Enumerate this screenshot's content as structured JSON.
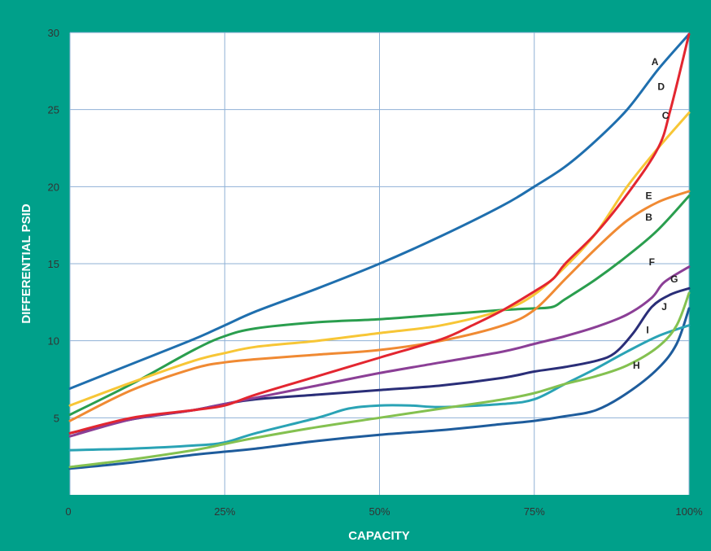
{
  "chart_data": {
    "type": "line",
    "title": "",
    "xlabel": "CAPACITY",
    "ylabel": "DIFFERENTIAL PSID",
    "xlim": [
      0,
      100
    ],
    "ylim": [
      0,
      30
    ],
    "x_ticks": [
      {
        "value": 0,
        "label": "0"
      },
      {
        "value": 25,
        "label": "25%"
      },
      {
        "value": 50,
        "label": "50%"
      },
      {
        "value": 75,
        "label": "75%"
      },
      {
        "value": 100,
        "label": "100%"
      }
    ],
    "y_ticks": [
      {
        "value": 5,
        "label": "5"
      },
      {
        "value": 10,
        "label": "10"
      },
      {
        "value": 15,
        "label": "15"
      },
      {
        "value": 20,
        "label": "20"
      },
      {
        "value": 25,
        "label": "25"
      },
      {
        "value": 30,
        "label": "30"
      }
    ],
    "grid": true,
    "legend": "inline labels near right end of curves",
    "colors": {
      "background": "#00a08a",
      "plot_background": "#ffffff",
      "grid": "#8fb1d6"
    },
    "series": [
      {
        "name": "A",
        "color": "#1f6fae",
        "label_at": [
          94.5,
          28.1
        ],
        "points": [
          [
            0,
            6.9
          ],
          [
            10,
            8.5
          ],
          [
            20,
            10.1
          ],
          [
            25,
            11.0
          ],
          [
            30,
            11.9
          ],
          [
            40,
            13.4
          ],
          [
            50,
            15.0
          ],
          [
            60,
            16.8
          ],
          [
            70,
            18.8
          ],
          [
            75,
            20.0
          ],
          [
            80,
            21.3
          ],
          [
            85,
            23.0
          ],
          [
            90,
            25.0
          ],
          [
            95,
            27.6
          ],
          [
            100,
            29.9
          ]
        ]
      },
      {
        "name": "D",
        "color": "#e32630",
        "label_at": [
          95.5,
          26.5
        ],
        "points": [
          [
            0,
            4.0
          ],
          [
            10,
            5.0
          ],
          [
            20,
            5.5
          ],
          [
            25,
            5.8
          ],
          [
            30,
            6.5
          ],
          [
            40,
            7.7
          ],
          [
            50,
            8.9
          ],
          [
            60,
            10.1
          ],
          [
            65,
            11.0
          ],
          [
            70,
            12.0
          ],
          [
            75,
            13.2
          ],
          [
            78,
            14.0
          ],
          [
            80,
            15.0
          ],
          [
            85,
            17.0
          ],
          [
            90,
            19.5
          ],
          [
            95,
            22.5
          ],
          [
            97,
            25.0
          ],
          [
            100,
            29.9
          ]
        ]
      },
      {
        "name": "C",
        "color": "#f7c636",
        "label_at": [
          96.2,
          24.6
        ],
        "points": [
          [
            0,
            5.8
          ],
          [
            10,
            7.3
          ],
          [
            20,
            8.7
          ],
          [
            25,
            9.2
          ],
          [
            30,
            9.6
          ],
          [
            40,
            10.0
          ],
          [
            50,
            10.5
          ],
          [
            60,
            11.0
          ],
          [
            70,
            12.0
          ],
          [
            75,
            13.0
          ],
          [
            80,
            14.8
          ],
          [
            85,
            17.0
          ],
          [
            90,
            20.0
          ],
          [
            95,
            22.5
          ],
          [
            100,
            24.8
          ]
        ]
      },
      {
        "name": "E",
        "color": "#f08a33",
        "label_at": [
          93.5,
          19.4
        ],
        "points": [
          [
            0,
            4.8
          ],
          [
            10,
            6.8
          ],
          [
            20,
            8.2
          ],
          [
            25,
            8.6
          ],
          [
            30,
            8.8
          ],
          [
            40,
            9.1
          ],
          [
            50,
            9.4
          ],
          [
            60,
            10.0
          ],
          [
            70,
            11.0
          ],
          [
            75,
            12.0
          ],
          [
            80,
            14.0
          ],
          [
            85,
            16.0
          ],
          [
            90,
            17.8
          ],
          [
            95,
            19.0
          ],
          [
            100,
            19.7
          ]
        ]
      },
      {
        "name": "B",
        "color": "#2a9e4e",
        "label_at": [
          93.5,
          18.0
        ],
        "points": [
          [
            0,
            5.2
          ],
          [
            10,
            7.2
          ],
          [
            20,
            9.4
          ],
          [
            25,
            10.3
          ],
          [
            30,
            10.8
          ],
          [
            40,
            11.2
          ],
          [
            50,
            11.4
          ],
          [
            60,
            11.7
          ],
          [
            70,
            12.0
          ],
          [
            75,
            12.1
          ],
          [
            78,
            12.2
          ],
          [
            80,
            12.7
          ],
          [
            85,
            14.0
          ],
          [
            90,
            15.5
          ],
          [
            95,
            17.2
          ],
          [
            100,
            19.4
          ]
        ]
      },
      {
        "name": "F",
        "color": "#8b3f96",
        "label_at": [
          94.0,
          15.1
        ],
        "points": [
          [
            0,
            3.8
          ],
          [
            10,
            4.9
          ],
          [
            20,
            5.5
          ],
          [
            25,
            5.9
          ],
          [
            30,
            6.3
          ],
          [
            40,
            7.1
          ],
          [
            50,
            7.9
          ],
          [
            60,
            8.6
          ],
          [
            70,
            9.3
          ],
          [
            75,
            9.8
          ],
          [
            80,
            10.3
          ],
          [
            85,
            10.9
          ],
          [
            90,
            11.7
          ],
          [
            94,
            12.8
          ],
          [
            96,
            13.8
          ],
          [
            100,
            14.8
          ]
        ]
      },
      {
        "name": "G",
        "color": "#2a2e78",
        "label_at": [
          97.6,
          14.0
        ],
        "points": [
          [
            0,
            4.0
          ],
          [
            10,
            4.9
          ],
          [
            20,
            5.5
          ],
          [
            25,
            5.9
          ],
          [
            30,
            6.2
          ],
          [
            40,
            6.5
          ],
          [
            50,
            6.8
          ],
          [
            60,
            7.1
          ],
          [
            70,
            7.6
          ],
          [
            75,
            8.0
          ],
          [
            80,
            8.3
          ],
          [
            85,
            8.7
          ],
          [
            88,
            9.2
          ],
          [
            91,
            10.5
          ],
          [
            94,
            12.2
          ],
          [
            97,
            13.0
          ],
          [
            100,
            13.4
          ]
        ]
      },
      {
        "name": "J",
        "color": "#84c150",
        "label_at": [
          96.0,
          12.2
        ],
        "points": [
          [
            0,
            1.8
          ],
          [
            10,
            2.3
          ],
          [
            20,
            2.9
          ],
          [
            25,
            3.3
          ],
          [
            30,
            3.7
          ],
          [
            40,
            4.4
          ],
          [
            50,
            5.0
          ],
          [
            60,
            5.6
          ],
          [
            70,
            6.2
          ],
          [
            75,
            6.6
          ],
          [
            80,
            7.2
          ],
          [
            85,
            7.7
          ],
          [
            90,
            8.4
          ],
          [
            95,
            9.6
          ],
          [
            98,
            11.0
          ],
          [
            100,
            13.1
          ]
        ]
      },
      {
        "name": "I",
        "color": "#2aa3b5",
        "label_at": [
          93.3,
          10.7
        ],
        "points": [
          [
            0,
            2.9
          ],
          [
            10,
            3.0
          ],
          [
            20,
            3.2
          ],
          [
            25,
            3.4
          ],
          [
            30,
            4.0
          ],
          [
            40,
            5.0
          ],
          [
            45,
            5.6
          ],
          [
            50,
            5.8
          ],
          [
            55,
            5.8
          ],
          [
            60,
            5.7
          ],
          [
            70,
            5.9
          ],
          [
            75,
            6.2
          ],
          [
            80,
            7.2
          ],
          [
            85,
            8.2
          ],
          [
            90,
            9.3
          ],
          [
            95,
            10.3
          ],
          [
            100,
            11.0
          ]
        ]
      },
      {
        "name": "H",
        "color": "#1e5c9c",
        "label_at": [
          91.5,
          8.4
        ],
        "points": [
          [
            0,
            1.7
          ],
          [
            10,
            2.1
          ],
          [
            20,
            2.6
          ],
          [
            25,
            2.8
          ],
          [
            30,
            3.0
          ],
          [
            40,
            3.5
          ],
          [
            50,
            3.9
          ],
          [
            60,
            4.2
          ],
          [
            70,
            4.6
          ],
          [
            75,
            4.8
          ],
          [
            80,
            5.1
          ],
          [
            85,
            5.5
          ],
          [
            90,
            6.6
          ],
          [
            95,
            8.2
          ],
          [
            98,
            9.8
          ],
          [
            100,
            12.1
          ]
        ]
      }
    ]
  }
}
